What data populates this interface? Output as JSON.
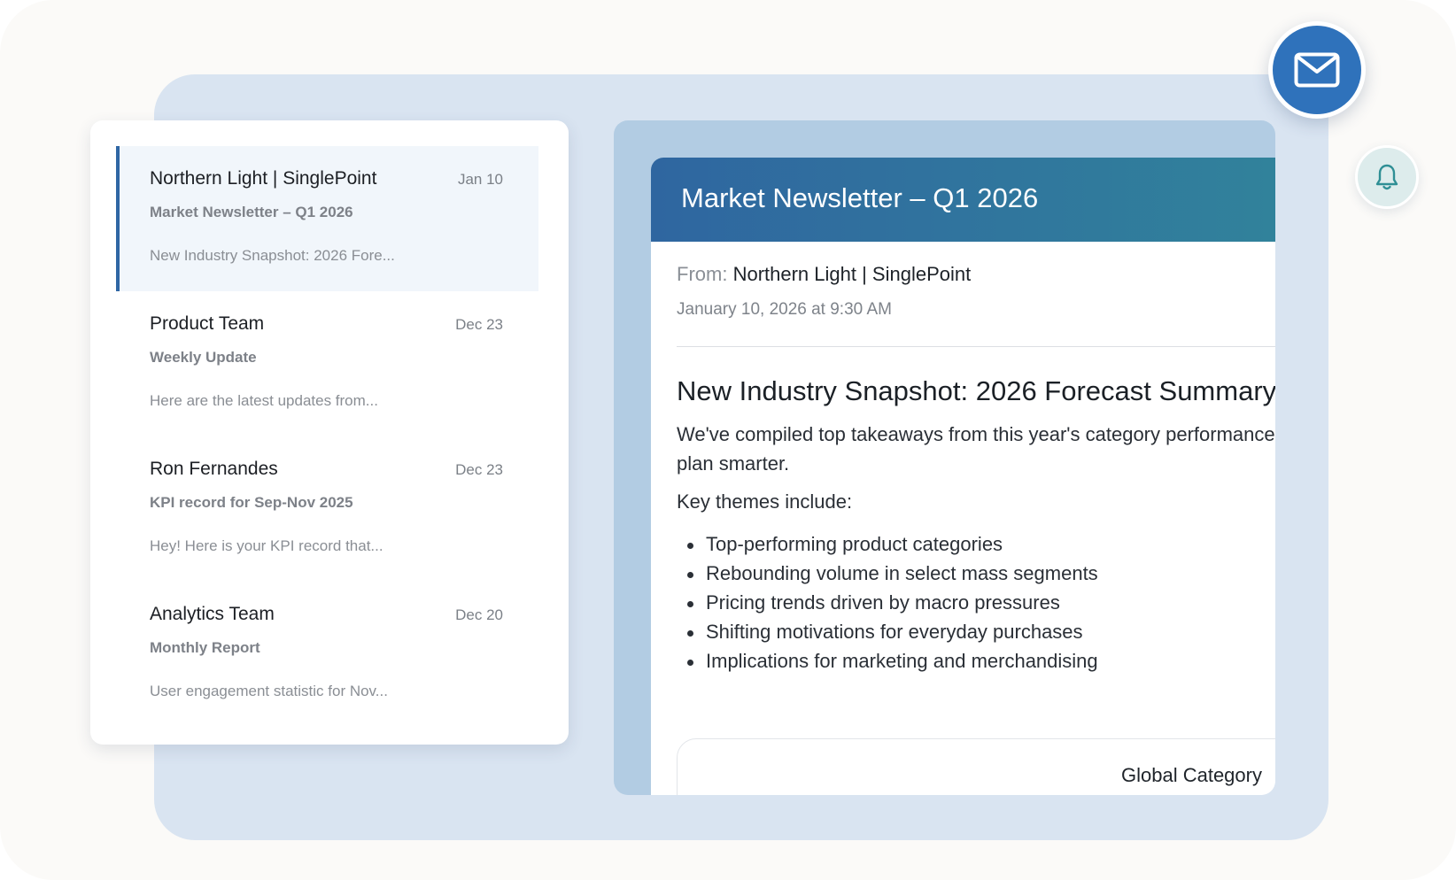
{
  "inbox": {
    "items": [
      {
        "sender": "Northern Light | SinglePoint",
        "date": "Jan 10",
        "subject": "Market Newsletter – Q1 2026",
        "preview": "New Industry Snapshot: 2026 Fore...",
        "active": true
      },
      {
        "sender": "Product Team",
        "date": "Dec 23",
        "subject": "Weekly Update",
        "preview": "Here are the latest updates from..."
      },
      {
        "sender": "Ron Fernandes",
        "date": "Dec 23",
        "subject": "KPI record for Sep-Nov 2025",
        "preview": "Hey! Here is your KPI record that..."
      },
      {
        "sender": "Analytics Team",
        "date": "Dec 20",
        "subject": "Monthly Report",
        "preview": "User engagement statistic for Nov..."
      }
    ]
  },
  "reader": {
    "title": "Market Newsletter – Q1 2026",
    "from_label": "From:",
    "from_name": "Northern Light | SinglePoint",
    "sent": "January 10, 2026 at 9:30 AM",
    "headline": "New Industry Snapshot: 2026 Forecast Summary",
    "intro_line1": "We've compiled top takeaways from this year's category performance",
    "intro_line2": "plan smarter.",
    "themes_label": "Key themes include:",
    "themes": [
      "Top-performing product categories",
      "Rebounding volume in select mass segments",
      "Pricing trends driven by macro pressures",
      "Shifting motivations for everyday purchases",
      "Implications for marketing and merchandising"
    ],
    "chart_card_title": "Global Category"
  },
  "icons": {
    "mail_fab": "envelope-icon",
    "bell_fab": "bell-icon"
  },
  "colors": {
    "accent": "#2f66a4",
    "header_gradient_start": "#2f66a0",
    "header_gradient_end": "#31829b",
    "mail_fab": "#2f72bb",
    "bell_fab": "#ddecec"
  }
}
